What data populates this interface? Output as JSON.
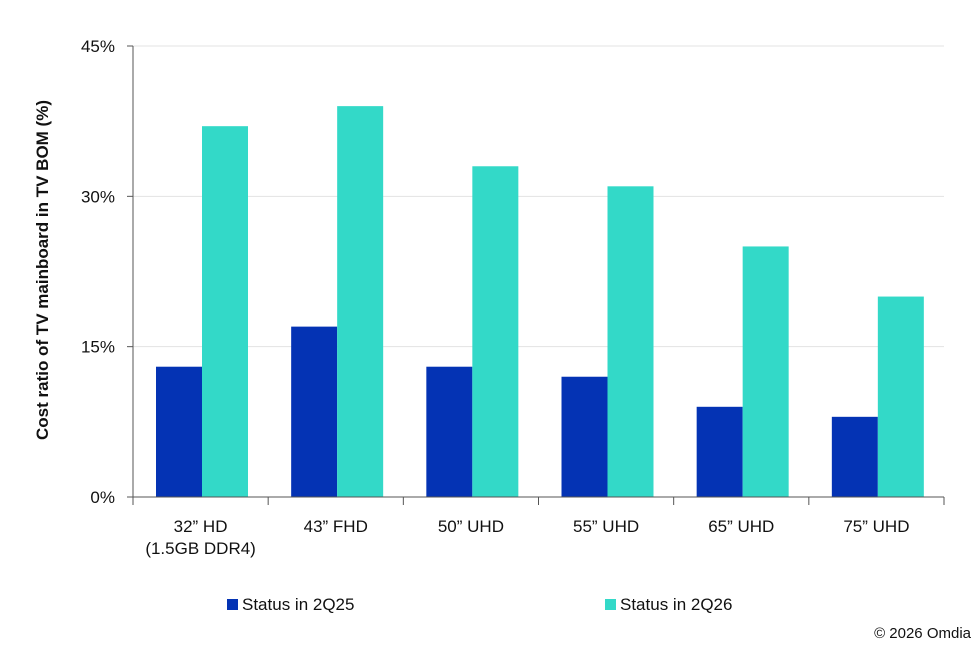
{
  "chart_data": {
    "type": "bar",
    "ylabel": "Cost ratio of TV mainboard in TV BOM (%)",
    "ylim": [
      0,
      45
    ],
    "yticks": [
      0,
      15,
      30,
      45
    ],
    "ytick_labels": [
      "0%",
      "15%",
      "30%",
      "45%"
    ],
    "grid": true,
    "legend_position": "bottom",
    "categories": [
      [
        "32” HD",
        "(1.5GB DDR4)"
      ],
      [
        "43” FHD"
      ],
      [
        "50” UHD"
      ],
      [
        "55” UHD"
      ],
      [
        "65” UHD"
      ],
      [
        "75” UHD"
      ]
    ],
    "series": [
      {
        "name": "Status in 2Q25",
        "color": "#0433b4",
        "values": [
          13,
          17,
          13,
          12,
          9,
          8
        ]
      },
      {
        "name": "Status in 2Q26",
        "color": "#33d9c8",
        "values": [
          37,
          39,
          33,
          31,
          25,
          20
        ]
      }
    ]
  },
  "source": "© 2026 Omdia"
}
